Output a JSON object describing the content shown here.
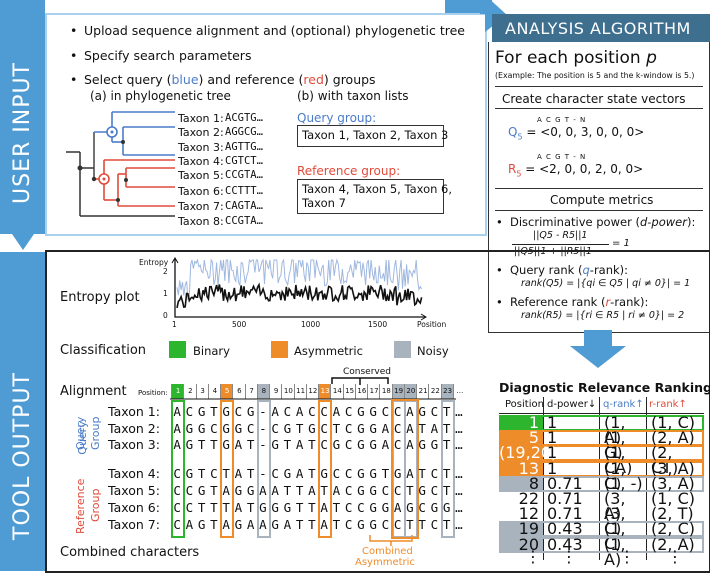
{
  "colors": {
    "side_blue": "#4f9bd3",
    "header_dark": "#3e6f8f",
    "query_blue": "#4a7cc9",
    "ref_red": "#e04b3b",
    "asym_orange": "#ef8c2a",
    "binary_green": "#2db52d",
    "noisy_gray": "#a9b3bd"
  },
  "user_input": {
    "side_label": "USER INPUT",
    "bullets": [
      "Upload sequence alignment and (optional) phylogenetic tree",
      "Specify search parameters"
    ],
    "select": {
      "pre": "Select query (",
      "query_word": "blue",
      "mid": ") and reference (",
      "ref_word": "red",
      "post": ") groups"
    },
    "sub_a": "(a) in phylogenetic tree",
    "sub_b": "(b) with taxon lists",
    "taxa": [
      {
        "name": "Taxon 1:",
        "seq": "ACGTG…"
      },
      {
        "name": "Taxon 2:",
        "seq": "AGGCG…"
      },
      {
        "name": "Taxon 3:",
        "seq": "AGTTG…"
      },
      {
        "name": "Taxon 4:",
        "seq": "CGTCT…"
      },
      {
        "name": "Taxon 5:",
        "seq": "CCGTA…"
      },
      {
        "name": "Taxon 6:",
        "seq": "CCTTT…"
      },
      {
        "name": "Taxon 7:",
        "seq": "CAGTA…"
      },
      {
        "name": "Taxon 8:",
        "seq": "CCGTA…"
      }
    ],
    "query_group_label": "Query group:",
    "query_group_list": "Taxon 1, Taxon 2, Taxon 3",
    "ref_group_label": "Reference group:",
    "ref_group_list_1": "Taxon 4, Taxon 5, Taxon 6,",
    "ref_group_list_2": "Taxon 7"
  },
  "algorithm": {
    "header": "ANALYSIS ALGORITHM",
    "for_each": "For each position",
    "p": "p",
    "example": "(Example: The position is 5 and the k-window is 5.)",
    "vec_title": "Create character state vectors",
    "vec_cols": "A  C  G  T  -  N",
    "q_label": "Q",
    "q_sub": "5",
    "q_vec": " = <0, 0, 3, 0, 0, 0>",
    "r_label": "R",
    "r_sub": "5",
    "r_vec": " = <2, 0, 0, 2, 0, 0>",
    "metrics_title": "Compute metrics",
    "dpower_label": "Discriminative power (",
    "dpower_term": "d-power",
    "dpower_close": "):",
    "dpower_num": "||Q5 - R5||1",
    "dpower_den": "||Q5||1 + ||R5||1",
    "dpower_val": "= 1",
    "qrank_label": "Query rank (",
    "qrank_term": "q",
    "qrank_rest": "-rank):",
    "qrank_formula": "rank(Q5) = |{qi ∈ Q5 | qi ≠ 0}| = 1",
    "rrank_label": "Reference rank (",
    "rrank_term": "r",
    "rrank_rest": "-rank):",
    "rrank_formula": "rank(R5) = |{ri ∈ R5 | ri ≠ 0}| = 2"
  },
  "output": {
    "side_label": "TOOL OUTPUT",
    "entropy_label": "Entropy plot",
    "entropy_axis_y": "Entropy",
    "entropy_axis_x": "Position",
    "entropy_ticks_y": [
      "2",
      "1",
      "0"
    ],
    "entropy_ticks_x": [
      "1",
      "500",
      "1000",
      "1500"
    ],
    "classification_label": "Classification",
    "legend": [
      {
        "name": "Binary",
        "color": "#2db52d"
      },
      {
        "name": "Asymmetric",
        "color": "#ef8c2a"
      },
      {
        "name": "Noisy",
        "color": "#a9b3bd"
      }
    ],
    "alignment_label": "Alignment",
    "conserved_label": "Conserved",
    "position_label": "Position:",
    "positions": [
      "1",
      "2",
      "3",
      "4",
      "5",
      "6",
      "7",
      "8",
      "9",
      "10",
      "11",
      "12",
      "13",
      "14",
      "15",
      "16",
      "17",
      "18",
      "19",
      "20",
      "21",
      "22",
      "23",
      "…"
    ],
    "query_group_label": [
      "Query",
      "Group"
    ],
    "ref_group_label": [
      "Reference",
      "Group"
    ],
    "rows": [
      {
        "name": "Taxon 1:",
        "seq": "ACGTGCG-ACACCACGGCCAGCT…"
      },
      {
        "name": "Taxon 2:",
        "seq": "AGGCGGC-CGTGCTCGGACATAT…"
      },
      {
        "name": "Taxon 3:",
        "seq": "AGTTGAT-GTATCGCGGACAGGT…"
      },
      {
        "name": "Taxon 4:",
        "seq": "CGTCTAT-CGATGCCGGTGATCT…"
      },
      {
        "name": "Taxon 5:",
        "seq": "CCGTAGGAATTATACGGCCTGCT…"
      },
      {
        "name": "Taxon 6:",
        "seq": "CCTTTATGGGTTATCCGGAGCGG…"
      },
      {
        "name": "Taxon 7:",
        "seq": "CAGTAGAAGATTATCGGCCTTCT…"
      }
    ],
    "combined_label": "Combined characters",
    "combined_asym": [
      "Combined",
      "Asymmetric"
    ]
  },
  "ranking": {
    "title": "Diagnostic Relevance Ranking",
    "headers": {
      "position": "Position",
      "dpower": "d-power↓",
      "qrank": "q-rank↑",
      "rrank": "r-rank↑"
    },
    "rows": [
      {
        "pos": "1",
        "d": "1",
        "q": "(1, A)",
        "r": "(1, C)",
        "cls": "binary"
      },
      {
        "pos": "5",
        "d": "1",
        "q": "(1, G)",
        "r": "(2, A)",
        "cls": "asym"
      },
      {
        "pos": "(19,20)",
        "d": "1",
        "q": "(1, CA)",
        "r": "(2, CT)",
        "cls": "asym"
      },
      {
        "pos": "13",
        "d": "1",
        "q": "(1, C)",
        "r": "(3, A)",
        "cls": "asym"
      },
      {
        "pos": "8",
        "d": "0.71",
        "q": "(1, -)",
        "r": "(3, A)",
        "cls": "noisy"
      },
      {
        "pos": "22",
        "d": "0.71",
        "q": "(3, A)",
        "r": "(1, C)",
        "cls": "none"
      },
      {
        "pos": "12",
        "d": "0.71",
        "q": "(3, C)",
        "r": "(2, T)",
        "cls": "none"
      },
      {
        "pos": "19",
        "d": "0.43",
        "q": "(1, C)",
        "r": "(2, C)",
        "cls": "noisy"
      },
      {
        "pos": "20",
        "d": "0.43",
        "q": "(1, A)",
        "r": "(2, A)",
        "cls": "noisy"
      }
    ],
    "dots": "⋮"
  }
}
